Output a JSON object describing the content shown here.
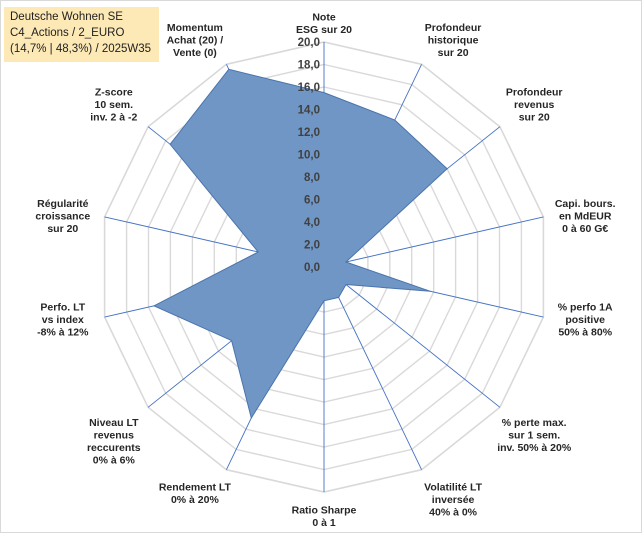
{
  "title": {
    "line1": "Deutsche Wohnen SE",
    "line2": "C4_Actions / 2_EURO",
    "line3": "(14,7% | 48,3%) / 2025W35"
  },
  "colors": {
    "fill": "#7096c6",
    "stroke": "#4a74ad",
    "grid": "#d9d9d9",
    "spoke": "#4472c4",
    "title_bg": "#fde9b6"
  },
  "chart_data": {
    "type": "radar",
    "scale": {
      "min": 0,
      "max": 20,
      "step": 2
    },
    "tick_labels": [
      "0,0",
      "2,0",
      "4,0",
      "6,0",
      "8,0",
      "10,0",
      "12,0",
      "14,0",
      "16,0",
      "18,0",
      "20,0"
    ],
    "grid": true,
    "legend": "none",
    "axes": [
      {
        "label": [
          "Note",
          "ESG sur 20"
        ],
        "value": 15.5
      },
      {
        "label": [
          "Profondeur",
          "historique",
          "sur 20"
        ],
        "value": 14.5
      },
      {
        "label": [
          "Profondeur",
          "revenus",
          "sur 20"
        ],
        "value": 14.0
      },
      {
        "label": [
          "Capi. bours.",
          "en MdEUR",
          "0 à 60 G€"
        ],
        "value": 2.0
      },
      {
        "label": [
          "% perfo 1A",
          "positive",
          "50% à 80%"
        ],
        "value": 9.7
      },
      {
        "label": [
          "% perte max.",
          "sur 1 sem.",
          "inv. 50% à 20%"
        ],
        "value": 2.5
      },
      {
        "label": [
          "Volatilité LT",
          "inversée",
          "40% à 0%"
        ],
        "value": 3.0
      },
      {
        "label": [
          "Ratio Sharpe",
          "0 à 1"
        ],
        "value": 3.0
      },
      {
        "label": [
          "Rendement LT",
          "0% à 20%"
        ],
        "value": 14.9
      },
      {
        "label": [
          "Niveau LT",
          "revenus",
          "reccurents",
          "0% à 6%"
        ],
        "value": 10.5
      },
      {
        "label": [
          "Perfo. LT",
          "vs index",
          "-8% à 12%"
        ],
        "value": 15.5
      },
      {
        "label": [
          "Régularité",
          "croissance",
          "sur 20"
        ],
        "value": 6.0
      },
      {
        "label": [
          "Z-score",
          "10 sem.",
          "inv. 2 à -2"
        ],
        "value": 17.5
      },
      {
        "label": [
          "Momentum",
          "Achat (20) /",
          "Vente (0)"
        ],
        "value": 19.5
      }
    ]
  }
}
